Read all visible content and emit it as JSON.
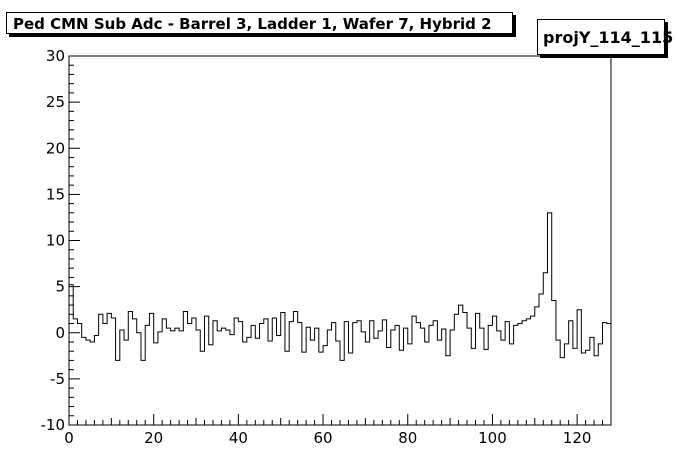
{
  "title": "Ped CMN Sub Adc - Barrel 3, Ladder 1, Wafer 7, Hybrid 2",
  "stats_label": "projY_114_115",
  "chart_data": {
    "type": "histogram",
    "title": "Ped CMN Sub Adc - Barrel 3, Ladder 1, Wafer 7, Hybrid 2",
    "xlabel": "",
    "ylabel": "",
    "xlim": [
      0,
      128
    ],
    "ylim": [
      -10,
      30
    ],
    "x_ticks": [
      0,
      20,
      40,
      60,
      80,
      100,
      120
    ],
    "y_ticks": [
      -10,
      -5,
      0,
      5,
      10,
      15,
      20,
      25,
      30
    ],
    "x_tick_labels": [
      "0",
      "20",
      "40",
      "60",
      "80",
      "100",
      "120"
    ],
    "y_tick_labels": [
      "-10",
      "-5",
      "0",
      "5",
      "10",
      "15",
      "20",
      "25",
      "30"
    ],
    "grid": false,
    "legend": "none",
    "bin_width": 1,
    "x_start": 0,
    "values": [
      5.2,
      1.5,
      1.0,
      -0.5,
      -0.8,
      -1.0,
      -0.3,
      2.0,
      1.0,
      2.1,
      1.6,
      -3.0,
      0.3,
      -0.8,
      2.3,
      1.5,
      0.0,
      -3.0,
      0.8,
      2.1,
      -1.1,
      0.1,
      1.5,
      0.5,
      0.2,
      0.5,
      0.2,
      2.3,
      1.0,
      1.6,
      0.3,
      -2.0,
      1.8,
      -1.3,
      1.3,
      0.2,
      0.5,
      0.3,
      -0.2,
      1.6,
      1.2,
      -1.0,
      -0.5,
      0.8,
      -0.6,
      1.0,
      1.5,
      -0.9,
      1.6,
      -0.3,
      2.2,
      -2.0,
      1.2,
      2.3,
      1.1,
      -2.1,
      0.6,
      -0.8,
      0.5,
      -2.1,
      -1.4,
      0.3,
      1.1,
      -0.9,
      -3.0,
      1.2,
      -2.2,
      1.1,
      1.3,
      0.1,
      -1.0,
      1.3,
      -0.6,
      0.2,
      1.4,
      -1.6,
      0.3,
      0.8,
      -1.9,
      0.5,
      -1.2,
      1.8,
      1.1,
      0.5,
      -1.0,
      0.8,
      1.3,
      -0.8,
      0.4,
      -2.5,
      0.3,
      2.0,
      3.0,
      2.2,
      0.5,
      -1.7,
      2.1,
      0.5,
      -1.8,
      0.8,
      1.8,
      0.2,
      -0.8,
      1.2,
      -1.2,
      0.8,
      1.0,
      1.3,
      1.5,
      1.8,
      2.8,
      4.2,
      6.5,
      13.0,
      3.5,
      -0.8,
      -2.7,
      -1.2,
      1.3,
      -1.7,
      2.5,
      -2.2,
      -1.9,
      -0.5,
      -2.5,
      -1.2,
      1.1,
      1.0
    ]
  }
}
